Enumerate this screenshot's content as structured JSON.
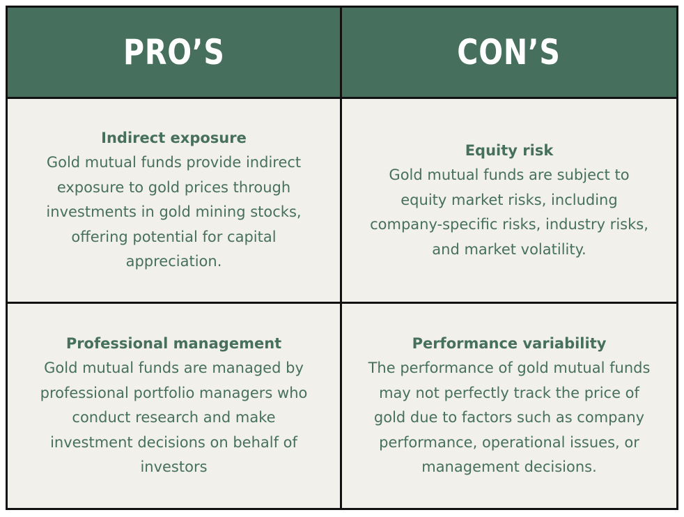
{
  "header": {
    "pros_title": "PRO’S",
    "cons_title": "CON’S"
  },
  "pros": [
    {
      "heading": "Indirect exposure",
      "text": "Gold mutual funds provide indirect\nexposure to gold prices through\ninvestments in gold mining stocks,\noffering potential for capital\nappreciation."
    },
    {
      "heading": "Professional management",
      "text": "Gold mutual funds are managed by\nprofessional portfolio managers who\nconduct research and make\ninvestment decisions on behalf of\ninvestors"
    }
  ],
  "cons": [
    {
      "heading": "Equity risk",
      "text": "Gold mutual funds are subject to\nequity market risks, including\ncompany-specific risks, industry risks,\nand market volatility."
    },
    {
      "heading": "Performance variability",
      "text": "The performance of gold mutual funds\nmay not perfectly track the price of\ngold due to factors such as company\nperformance, operational issues, or\nmanagement decisions."
    }
  ],
  "colors": {
    "header_bg": "#46705d",
    "header_text": "#ffffff",
    "body_bg": "#f2f0eb",
    "body_text": "#46705d",
    "border": "#111111"
  }
}
